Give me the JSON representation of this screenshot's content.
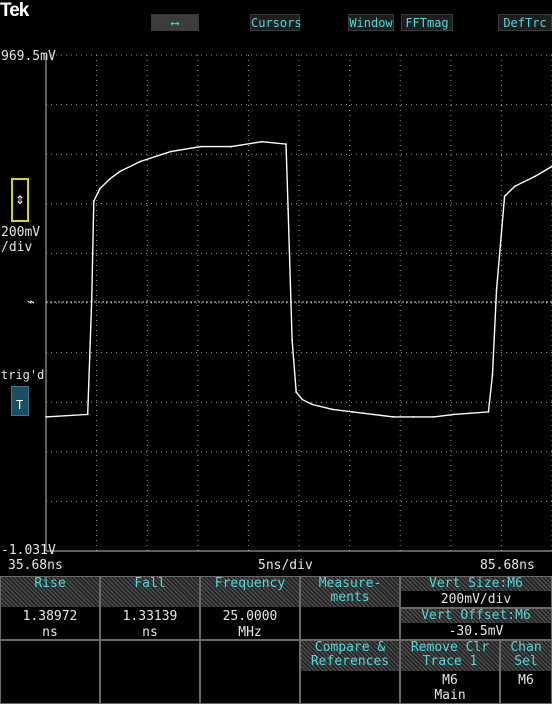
{
  "brand": "Tek",
  "top_menu": {
    "arrows_label": "⟷",
    "cursors_label": "Cursors",
    "window_label": "Window",
    "fftmag_label": "FFTmag",
    "deftrc_label": "DefTrc"
  },
  "scope": {
    "y_max": "969.5mV",
    "y_min": "-1.031V",
    "vertical_scale": "200mV",
    "vertical_scale_unit": "/div",
    "x_left": "35.68ns",
    "x_center": "5ns/div",
    "x_right": "85.68ns",
    "trigger_status": "trig'd",
    "trigger_marker": "T"
  },
  "measurements": [
    {
      "name": "Rise",
      "value": "1.38972",
      "unit": "ns"
    },
    {
      "name": "Fall",
      "value": "1.33139",
      "unit": "ns"
    },
    {
      "name": "Frequency",
      "value": "25.0000",
      "unit": "MHz"
    }
  ],
  "menu": {
    "measurements_label": "Measure-\nments",
    "vert_size_label": "Vert Size:M6",
    "vert_size_value": "200mV/div",
    "vert_offset_label": "Vert Offset:M6",
    "vert_offset_value": "-30.5mV",
    "compare_label": "Compare &\nReferences",
    "remove_label": "Remove Clr\nTrace 1",
    "remove_sub1": "M6",
    "remove_sub2": "Main",
    "chan_label": "Chan\nSel",
    "chan_value": "M6"
  },
  "chart_data": {
    "type": "line",
    "title": "",
    "xlabel": "",
    "ylabel": "",
    "xlim": [
      35.68,
      85.68
    ],
    "ylim": [
      -1.031,
      0.9695
    ],
    "x_units": "ns",
    "y_units": "V",
    "grid": true,
    "series": [
      {
        "x": [
          35.68,
          39.8,
          40.2,
          40.4,
          41.0,
          42.0,
          43.0,
          45.0,
          48.0,
          51.0,
          54.0,
          57.0,
          59.4,
          59.6,
          60.0,
          60.4,
          61.0,
          62.0,
          64.0,
          66.0,
          68.0,
          70.0,
          72.0,
          74.0,
          76.0,
          79.4,
          79.8,
          80.2,
          81.0,
          82.0,
          84.0,
          85.68
        ],
        "y": [
          -0.49,
          -0.48,
          -0.02,
          0.38,
          0.43,
          0.47,
          0.5,
          0.54,
          0.58,
          0.6,
          0.6,
          0.62,
          0.61,
          0.35,
          -0.18,
          -0.39,
          -0.42,
          -0.44,
          -0.46,
          -0.47,
          -0.48,
          -0.49,
          -0.49,
          -0.49,
          -0.48,
          -0.47,
          -0.32,
          0.02,
          0.4,
          0.44,
          0.48,
          0.52
        ]
      }
    ]
  }
}
